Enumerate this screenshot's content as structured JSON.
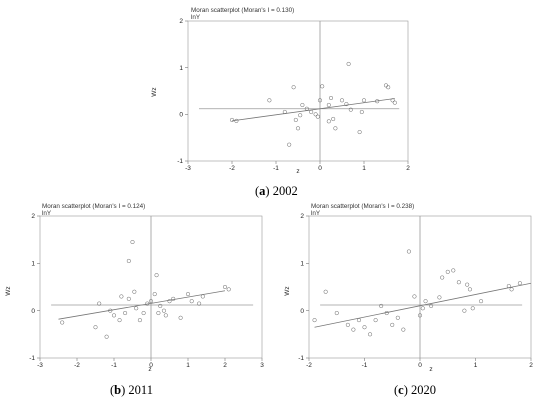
{
  "chart_data": [
    {
      "type": "scatter",
      "title": "Moran scatterplot (Moran's I = 0.130)",
      "subtitle": "lnY",
      "xlabel": "z",
      "ylabel": "Wz",
      "caption_letter": "a",
      "caption_year": "2002",
      "xlim": [
        -3,
        2
      ],
      "ylim": [
        -1,
        2
      ],
      "xticks": [
        "-3",
        "-2",
        "-1",
        "0",
        "1",
        "2"
      ],
      "yticks": [
        "-1",
        "0",
        "1",
        "2"
      ],
      "hline": 0.12,
      "fit_line": [
        [
          -2.0,
          -0.14
        ],
        [
          1.7,
          0.34
        ]
      ],
      "points": [
        [
          -2.0,
          -0.12
        ],
        [
          -1.9,
          -0.14
        ],
        [
          -1.15,
          0.3
        ],
        [
          -0.8,
          0.05
        ],
        [
          -0.6,
          0.58
        ],
        [
          -0.55,
          -0.12
        ],
        [
          -0.5,
          -0.3
        ],
        [
          -0.45,
          -0.02
        ],
        [
          -0.4,
          0.2
        ],
        [
          -0.3,
          0.12
        ],
        [
          -0.2,
          0.05
        ],
        [
          -0.1,
          0.0
        ],
        [
          -0.05,
          -0.05
        ],
        [
          0.0,
          0.3
        ],
        [
          0.05,
          0.6
        ],
        [
          0.2,
          0.2
        ],
        [
          0.3,
          -0.1
        ],
        [
          0.35,
          -0.3
        ],
        [
          0.5,
          0.3
        ],
        [
          0.6,
          0.22
        ],
        [
          0.65,
          1.08
        ],
        [
          0.7,
          0.1
        ],
        [
          0.9,
          -0.38
        ],
        [
          0.95,
          0.05
        ],
        [
          1.0,
          0.3
        ],
        [
          1.3,
          0.28
        ],
        [
          1.5,
          0.62
        ],
        [
          1.55,
          0.58
        ],
        [
          1.65,
          0.3
        ],
        [
          0.2,
          -0.15
        ],
        [
          -0.7,
          -0.65
        ],
        [
          0.25,
          0.35
        ],
        [
          1.7,
          0.25
        ]
      ]
    },
    {
      "type": "scatter",
      "title": "Moran scatterplot (Moran's I = 0.124)",
      "subtitle": "lnY",
      "xlabel": "z",
      "ylabel": "Wz",
      "caption_letter": "b",
      "caption_year": "2011",
      "xlim": [
        -3,
        3
      ],
      "ylim": [
        -1,
        2
      ],
      "xticks": [
        "-3",
        "-2",
        "-1",
        "0",
        "1",
        "2",
        "3"
      ],
      "yticks": [
        "-1",
        "0",
        "1",
        "2"
      ],
      "hline": 0.12,
      "fit_line": [
        [
          -2.5,
          -0.18
        ],
        [
          2.0,
          0.42
        ]
      ],
      "points": [
        [
          -2.4,
          -0.25
        ],
        [
          -1.5,
          -0.35
        ],
        [
          -1.4,
          0.15
        ],
        [
          -1.2,
          -0.55
        ],
        [
          -1.1,
          0.0
        ],
        [
          -1.0,
          -0.1
        ],
        [
          -0.85,
          -0.2
        ],
        [
          -0.8,
          0.3
        ],
        [
          -0.7,
          -0.05
        ],
        [
          -0.6,
          0.25
        ],
        [
          -0.5,
          1.45
        ],
        [
          -0.45,
          0.4
        ],
        [
          -0.4,
          0.05
        ],
        [
          -0.3,
          -0.2
        ],
        [
          -0.2,
          -0.05
        ],
        [
          -0.1,
          0.15
        ],
        [
          0.0,
          0.2
        ],
        [
          0.1,
          0.35
        ],
        [
          0.15,
          0.75
        ],
        [
          0.2,
          -0.05
        ],
        [
          0.25,
          0.1
        ],
        [
          0.35,
          0.0
        ],
        [
          0.5,
          0.2
        ],
        [
          0.6,
          0.25
        ],
        [
          0.8,
          -0.15
        ],
        [
          1.0,
          0.35
        ],
        [
          1.1,
          0.2
        ],
        [
          1.3,
          0.15
        ],
        [
          1.4,
          0.3
        ],
        [
          2.0,
          0.5
        ],
        [
          2.1,
          0.45
        ],
        [
          -0.6,
          1.05
        ],
        [
          0.4,
          -0.1
        ]
      ]
    },
    {
      "type": "scatter",
      "title": "Moran scatterplot (Moran's I = 0.238)",
      "subtitle": "lnY",
      "xlabel": "z",
      "ylabel": "Wz",
      "caption_letter": "c",
      "caption_year": "2020",
      "xlim": [
        -2,
        2
      ],
      "ylim": [
        -1,
        2
      ],
      "xticks": [
        "-2",
        "-1",
        "0",
        "1",
        "2"
      ],
      "yticks": [
        "-1",
        "0",
        "1",
        "2"
      ],
      "hline": 0.12,
      "fit_line": [
        [
          -1.9,
          -0.35
        ],
        [
          2.0,
          0.58
        ]
      ],
      "points": [
        [
          -1.9,
          -0.2
        ],
        [
          -1.7,
          0.4
        ],
        [
          -1.5,
          -0.05
        ],
        [
          -1.3,
          -0.3
        ],
        [
          -1.2,
          -0.4
        ],
        [
          -1.1,
          -0.2
        ],
        [
          -1.0,
          -0.35
        ],
        [
          -0.9,
          -0.5
        ],
        [
          -0.8,
          -0.2
        ],
        [
          -0.7,
          0.1
        ],
        [
          -0.6,
          -0.05
        ],
        [
          -0.5,
          -0.3
        ],
        [
          -0.4,
          -0.15
        ],
        [
          -0.3,
          -0.4
        ],
        [
          -0.2,
          1.25
        ],
        [
          -0.1,
          0.3
        ],
        [
          0.0,
          -0.1
        ],
        [
          0.05,
          0.05
        ],
        [
          0.1,
          0.2
        ],
        [
          0.2,
          0.1
        ],
        [
          0.35,
          0.28
        ],
        [
          0.4,
          0.7
        ],
        [
          0.5,
          0.82
        ],
        [
          0.6,
          0.85
        ],
        [
          0.7,
          0.6
        ],
        [
          0.8,
          0.0
        ],
        [
          0.85,
          0.55
        ],
        [
          0.9,
          0.45
        ],
        [
          1.1,
          0.2
        ],
        [
          1.6,
          0.52
        ],
        [
          1.65,
          0.45
        ],
        [
          1.8,
          0.58
        ],
        [
          0.95,
          0.05
        ]
      ]
    }
  ]
}
